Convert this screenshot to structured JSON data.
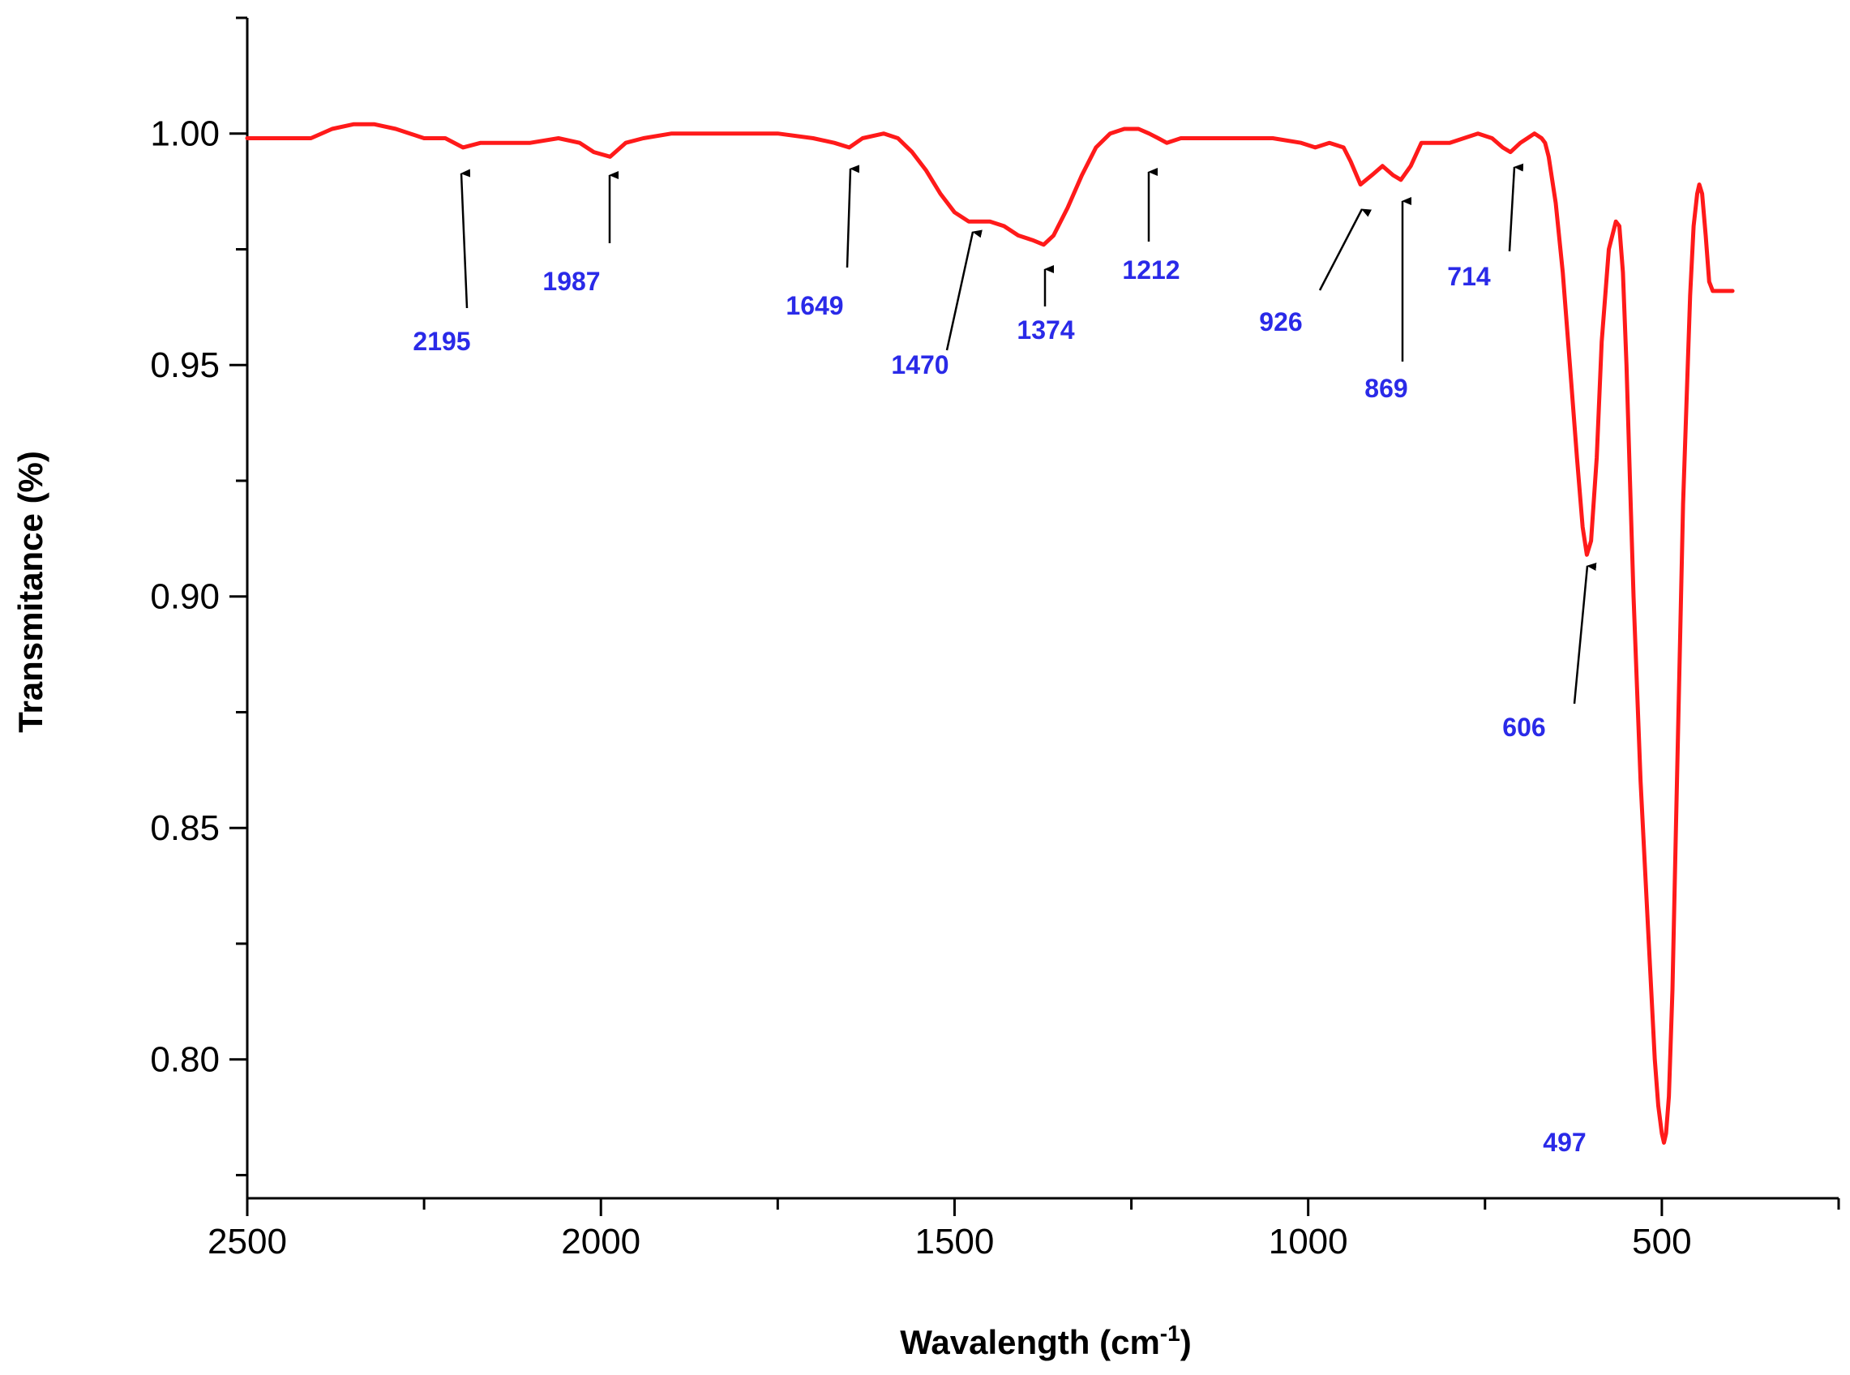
{
  "colors": {
    "line": "#ff1a1a",
    "peak_label": "#2a2ae8",
    "arrow": "#000000",
    "axis": "#000000"
  },
  "chart_data": {
    "type": "line",
    "xlabel": "Wavalength (cm",
    "xlabel_sup": "-1",
    "xlabel_suffix": ")",
    "ylabel": "Transmitance (%)",
    "xlim": [
      2500,
      250
    ],
    "ylim": [
      0.77,
      1.025
    ],
    "x_reversed": true,
    "grid": false,
    "x_ticks": [
      2500,
      2000,
      1500,
      1000,
      500
    ],
    "x_tick_labels": [
      "2500",
      "2000",
      "1500",
      "1000",
      "500"
    ],
    "y_ticks": [
      0.8,
      0.85,
      0.9,
      0.95,
      1.0
    ],
    "y_tick_labels": [
      "0.80",
      "0.85",
      "0.90",
      "0.95",
      "1.00"
    ],
    "series": [
      {
        "x": [
          2500,
          2450,
          2410,
          2380,
          2350,
          2320,
          2290,
          2250,
          2220,
          2195,
          2170,
          2150,
          2100,
          2060,
          2030,
          2010,
          1987,
          1965,
          1940,
          1900,
          1850,
          1800,
          1750,
          1700,
          1670,
          1649,
          1630,
          1600,
          1580,
          1560,
          1540,
          1520,
          1500,
          1480,
          1470,
          1450,
          1430,
          1410,
          1390,
          1374,
          1360,
          1340,
          1320,
          1300,
          1280,
          1260,
          1240,
          1225,
          1212,
          1200,
          1180,
          1150,
          1100,
          1050,
          1010,
          990,
          970,
          950,
          940,
          926,
          910,
          895,
          880,
          869,
          855,
          840,
          825,
          800,
          780,
          760,
          740,
          725,
          714,
          700,
          690,
          680,
          670,
          665,
          660,
          650,
          640,
          630,
          620,
          612,
          606,
          600,
          592,
          585,
          575,
          565,
          560,
          555,
          550,
          545,
          540,
          530,
          520,
          510,
          505,
          500,
          497,
          494,
          490,
          485,
          480,
          470,
          460,
          455,
          450,
          447,
          443,
          438,
          433,
          428,
          420,
          400
        ],
        "y": [
          0.999,
          0.999,
          0.999,
          1.001,
          1.002,
          1.002,
          1.001,
          0.999,
          0.999,
          0.997,
          0.998,
          0.998,
          0.998,
          0.999,
          0.998,
          0.996,
          0.995,
          0.998,
          0.999,
          1.0,
          1.0,
          1.0,
          1.0,
          0.999,
          0.998,
          0.997,
          0.999,
          1.0,
          0.999,
          0.996,
          0.992,
          0.987,
          0.983,
          0.981,
          0.981,
          0.981,
          0.98,
          0.978,
          0.977,
          0.976,
          0.978,
          0.984,
          0.991,
          0.997,
          1.0,
          1.001,
          1.001,
          1.0,
          0.999,
          0.998,
          0.999,
          0.999,
          0.999,
          0.999,
          0.998,
          0.997,
          0.998,
          0.997,
          0.994,
          0.989,
          0.991,
          0.993,
          0.991,
          0.99,
          0.993,
          0.998,
          0.998,
          0.998,
          0.999,
          1.0,
          0.999,
          0.997,
          0.996,
          0.998,
          0.999,
          1.0,
          0.999,
          0.998,
          0.995,
          0.985,
          0.97,
          0.95,
          0.93,
          0.915,
          0.909,
          0.912,
          0.93,
          0.955,
          0.975,
          0.981,
          0.98,
          0.97,
          0.95,
          0.925,
          0.9,
          0.86,
          0.83,
          0.8,
          0.79,
          0.784,
          0.782,
          0.784,
          0.792,
          0.815,
          0.85,
          0.92,
          0.965,
          0.98,
          0.987,
          0.989,
          0.987,
          0.978,
          0.968,
          0.966,
          0.966,
          0.966
        ]
      }
    ],
    "annotations": [
      {
        "label": "2195",
        "x": 2195
      },
      {
        "label": "1987",
        "x": 1987
      },
      {
        "label": "1649",
        "x": 1649
      },
      {
        "label": "1470",
        "x": 1470
      },
      {
        "label": "1374",
        "x": 1374
      },
      {
        "label": "1212",
        "x": 1212
      },
      {
        "label": "926",
        "x": 926
      },
      {
        "label": "869",
        "x": 869
      },
      {
        "label": "714",
        "x": 714
      },
      {
        "label": "606",
        "x": 606
      },
      {
        "label": "497",
        "x": 497
      }
    ]
  }
}
